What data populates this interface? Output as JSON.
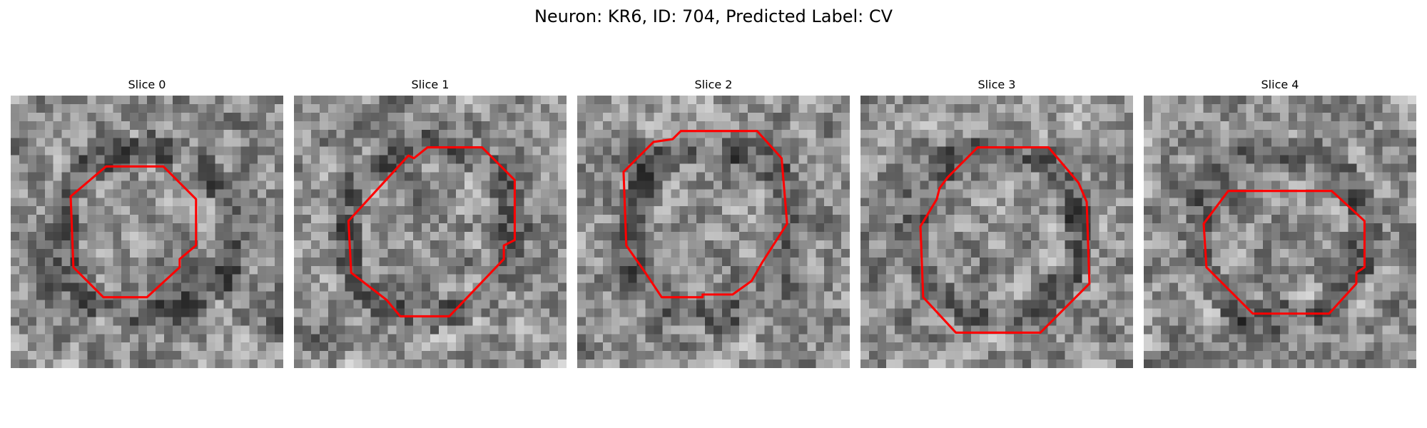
{
  "figure": {
    "title": "Neuron: KR6, ID: 704, Predicted Label: CV"
  },
  "colors": {
    "contour": "#ff0000",
    "background": "#ffffff"
  },
  "slices": [
    {
      "label": "Slice 0",
      "seed": 11,
      "contour": [
        [
          0.35,
          0.26
        ],
        [
          0.56,
          0.26
        ],
        [
          0.68,
          0.38
        ],
        [
          0.68,
          0.55
        ],
        [
          0.62,
          0.6
        ],
        [
          0.62,
          0.63
        ],
        [
          0.5,
          0.74
        ],
        [
          0.34,
          0.74
        ],
        [
          0.23,
          0.63
        ],
        [
          0.22,
          0.37
        ]
      ]
    },
    {
      "label": "Slice 1",
      "seed": 23,
      "contour": [
        [
          0.44,
          0.23
        ],
        [
          0.49,
          0.19
        ],
        [
          0.69,
          0.19
        ],
        [
          0.81,
          0.31
        ],
        [
          0.81,
          0.53
        ],
        [
          0.77,
          0.55
        ],
        [
          0.77,
          0.6
        ],
        [
          0.57,
          0.81
        ],
        [
          0.39,
          0.81
        ],
        [
          0.34,
          0.75
        ],
        [
          0.21,
          0.65
        ],
        [
          0.2,
          0.46
        ],
        [
          0.42,
          0.22
        ]
      ]
    },
    {
      "label": "Slice 2",
      "seed": 37,
      "contour": [
        [
          0.28,
          0.17
        ],
        [
          0.35,
          0.16
        ],
        [
          0.38,
          0.13
        ],
        [
          0.66,
          0.13
        ],
        [
          0.75,
          0.23
        ],
        [
          0.77,
          0.47
        ],
        [
          0.68,
          0.61
        ],
        [
          0.64,
          0.68
        ],
        [
          0.57,
          0.73
        ],
        [
          0.46,
          0.73
        ],
        [
          0.46,
          0.74
        ],
        [
          0.31,
          0.74
        ],
        [
          0.25,
          0.65
        ],
        [
          0.18,
          0.55
        ],
        [
          0.17,
          0.28
        ]
      ]
    },
    {
      "label": "Slice 3",
      "seed": 51,
      "contour": [
        [
          0.43,
          0.19
        ],
        [
          0.69,
          0.19
        ],
        [
          0.8,
          0.32
        ],
        [
          0.83,
          0.39
        ],
        [
          0.84,
          0.69
        ],
        [
          0.66,
          0.87
        ],
        [
          0.35,
          0.87
        ],
        [
          0.23,
          0.74
        ],
        [
          0.22,
          0.48
        ],
        [
          0.28,
          0.38
        ],
        [
          0.29,
          0.34
        ],
        [
          0.32,
          0.3
        ]
      ]
    },
    {
      "label": "Slice 4",
      "seed": 67,
      "contour": [
        [
          0.31,
          0.35
        ],
        [
          0.69,
          0.35
        ],
        [
          0.81,
          0.46
        ],
        [
          0.81,
          0.63
        ],
        [
          0.78,
          0.65
        ],
        [
          0.78,
          0.69
        ],
        [
          0.68,
          0.8
        ],
        [
          0.4,
          0.8
        ],
        [
          0.23,
          0.63
        ],
        [
          0.22,
          0.47
        ]
      ]
    }
  ]
}
